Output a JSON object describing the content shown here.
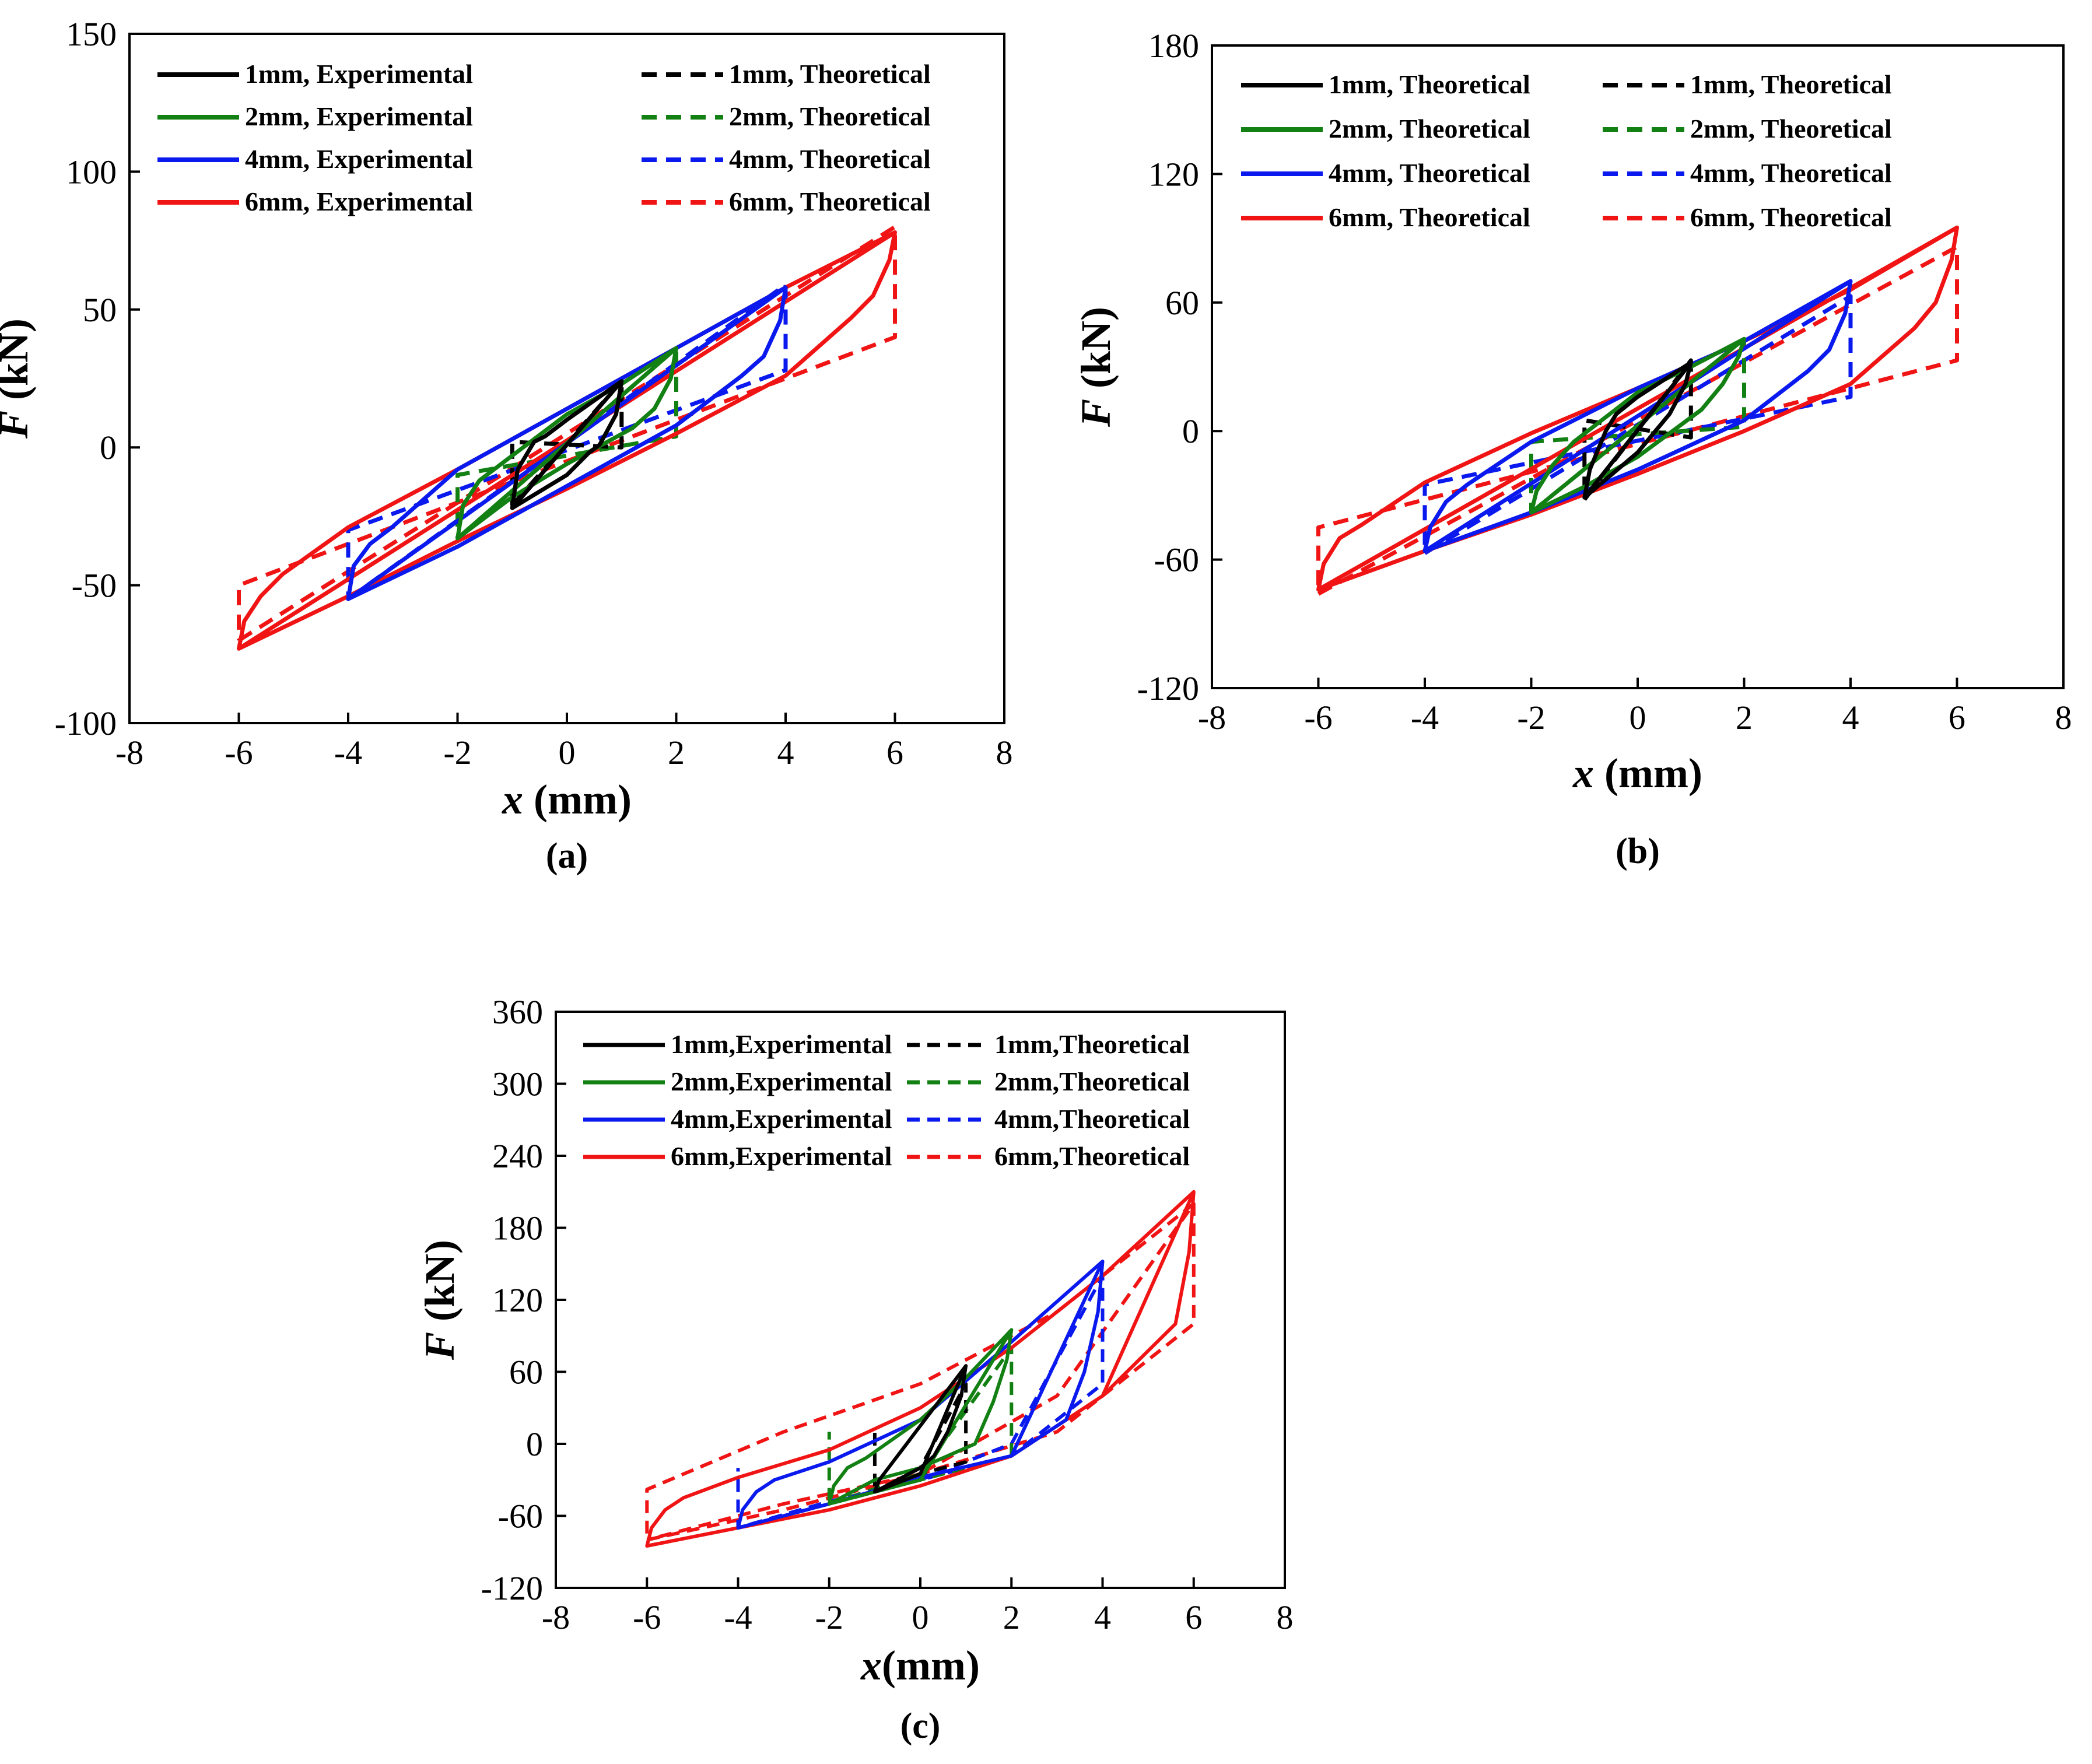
{
  "colors": {
    "1mm": "#000000",
    "2mm": "#138013",
    "4mm": "#0a19ee",
    "6mm": "#f01414"
  },
  "chart_data": [
    {
      "type": "line",
      "panel_label": "(a)",
      "xlabel_var": "x",
      "xlabel_unit": " (mm)",
      "ylabel_var": "F",
      "ylabel_unit": " (kN)",
      "xlim": [
        -8,
        8
      ],
      "ylim": [
        -100,
        150
      ],
      "xticks": [
        -8,
        -6,
        -4,
        -2,
        0,
        2,
        4,
        6,
        8
      ],
      "yticks": [
        -100,
        -50,
        0,
        50,
        100,
        150
      ],
      "legend": [
        {
          "label": "1mm, Experimental",
          "key": "1mm",
          "style": "solid"
        },
        {
          "label": "1mm, Theoretical",
          "key": "1mm",
          "style": "dashed"
        },
        {
          "label": "2mm, Experimental",
          "key": "2mm",
          "style": "solid"
        },
        {
          "label": "2mm, Theoretical",
          "key": "2mm",
          "style": "dashed"
        },
        {
          "label": "4mm, Experimental",
          "key": "4mm",
          "style": "solid"
        },
        {
          "label": "4mm, Theoretical",
          "key": "4mm",
          "style": "dashed"
        },
        {
          "label": "6mm, Experimental",
          "key": "6mm",
          "style": "solid"
        },
        {
          "label": "6mm, Theoretical",
          "key": "6mm",
          "style": "dashed"
        }
      ],
      "series": [
        {
          "name": "6mm, Theoretical",
          "key": "6mm",
          "style": "dashed",
          "x": [
            -6,
            6,
            6,
            -6,
            -6
          ],
          "y": [
            -70,
            80,
            40,
            -50,
            -70
          ]
        },
        {
          "name": "4mm, Theoretical",
          "key": "4mm",
          "style": "dashed",
          "x": [
            -4,
            4,
            4,
            -4,
            -4
          ],
          "y": [
            -55,
            59,
            28,
            -30,
            -55
          ]
        },
        {
          "name": "2mm, Theoretical",
          "key": "2mm",
          "style": "dashed",
          "x": [
            -2,
            2,
            2,
            -2,
            -2
          ],
          "y": [
            -33,
            36,
            4,
            -10,
            -33
          ]
        },
        {
          "name": "1mm, Theoretical",
          "key": "1mm",
          "style": "dashed",
          "x": [
            -1,
            1,
            1,
            -1,
            -1
          ],
          "y": [
            -21,
            24,
            0,
            2,
            -21
          ]
        },
        {
          "name": "6mm, Experimental",
          "key": "6mm",
          "style": "solid",
          "x": [
            -6,
            6,
            5.9,
            5.6,
            5.2,
            4,
            2,
            0,
            -2,
            -4,
            -6,
            -5.9,
            -5.6,
            -5.2,
            -4,
            -2,
            0,
            2,
            4,
            6
          ],
          "y": [
            -73,
            78,
            68,
            55,
            47,
            26,
            5,
            -15,
            -34,
            -54,
            -73,
            -63,
            -54,
            -46,
            -29,
            -8,
            14,
            36,
            58,
            78
          ]
        },
        {
          "name": "4mm, Experimental",
          "key": "4mm",
          "style": "solid",
          "x": [
            -4,
            4,
            3.9,
            3.6,
            3.2,
            2,
            0,
            -2,
            -4,
            -3.9,
            -3.6,
            -3.2,
            -2,
            0,
            2,
            4
          ],
          "y": [
            -55,
            58,
            46,
            33,
            26,
            8,
            -14,
            -36,
            -55,
            -43,
            -35,
            -29,
            -8,
            14,
            36,
            58
          ]
        },
        {
          "name": "2mm, Experimental",
          "key": "2mm",
          "style": "solid",
          "x": [
            -2,
            2,
            1.9,
            1.6,
            1.2,
            0,
            -1,
            -2,
            -1.9,
            -1.6,
            -1.2,
            0,
            1,
            2
          ],
          "y": [
            -33,
            36,
            25,
            14,
            7,
            -6,
            -18,
            -33,
            -21,
            -12,
            -6,
            12,
            23,
            36
          ]
        },
        {
          "name": "1mm, Experimental",
          "key": "1mm",
          "style": "solid",
          "x": [
            -1,
            1,
            0.9,
            0.6,
            0.4,
            0,
            -1,
            -0.9,
            -0.6,
            -0.4,
            0,
            1
          ],
          "y": [
            -22,
            24,
            12,
            1,
            -2,
            -10,
            -22,
            -8,
            2,
            4,
            10,
            24
          ]
        }
      ]
    },
    {
      "type": "line",
      "panel_label": "(b)",
      "xlabel_var": "x",
      "xlabel_unit": " (mm)",
      "ylabel_var": "F",
      "ylabel_unit": " (kN)",
      "xlim": [
        -8,
        8
      ],
      "ylim": [
        -120,
        180
      ],
      "xticks": [
        -8,
        -6,
        -4,
        -2,
        0,
        2,
        4,
        6,
        8
      ],
      "yticks": [
        -120,
        -60,
        0,
        60,
        120,
        180
      ],
      "legend": [
        {
          "label": "1mm, Theoretical",
          "key": "1mm",
          "style": "solid"
        },
        {
          "label": "1mm, Theoretical",
          "key": "1mm",
          "style": "dashed"
        },
        {
          "label": "2mm, Theoretical",
          "key": "2mm",
          "style": "solid"
        },
        {
          "label": "2mm, Theoretical",
          "key": "2mm",
          "style": "dashed"
        },
        {
          "label": "4mm, Theoretical",
          "key": "4mm",
          "style": "solid"
        },
        {
          "label": "4mm, Theoretical",
          "key": "4mm",
          "style": "dashed"
        },
        {
          "label": "6mm, Theoretical",
          "key": "6mm",
          "style": "solid"
        },
        {
          "label": "6mm, Theoretical",
          "key": "6mm",
          "style": "dashed"
        }
      ],
      "series": [
        {
          "name": "6mm, Theoretical (dashed)",
          "key": "6mm",
          "style": "dashed",
          "x": [
            -6,
            6,
            6,
            -6,
            -6
          ],
          "y": [
            -76,
            86,
            33,
            -45,
            -76
          ]
        },
        {
          "name": "4mm, Theoretical (dashed)",
          "key": "4mm",
          "style": "dashed",
          "x": [
            -4,
            4,
            4,
            -4,
            -4
          ],
          "y": [
            -57,
            63,
            16,
            -25,
            -57
          ]
        },
        {
          "name": "2mm, Theoretical (dashed)",
          "key": "2mm",
          "style": "dashed",
          "x": [
            -2,
            2,
            2,
            -2,
            -2
          ],
          "y": [
            -38,
            43,
            2,
            -5,
            -38
          ]
        },
        {
          "name": "1mm, Theoretical (dashed)",
          "key": "1mm",
          "style": "dashed",
          "x": [
            -1,
            1,
            1,
            -1,
            -1
          ],
          "y": [
            -32,
            33,
            -3,
            5,
            -32
          ]
        },
        {
          "name": "6mm, Theoretical",
          "key": "6mm",
          "style": "solid",
          "x": [
            -6,
            6,
            5.9,
            5.6,
            5.2,
            4,
            2,
            0,
            -2,
            -4,
            -6,
            -5.9,
            -5.6,
            -5.2,
            -4,
            -2,
            0,
            2,
            4,
            6
          ],
          "y": [
            -74,
            95,
            80,
            60,
            48,
            22,
            0,
            -20,
            -39,
            -56,
            -74,
            -62,
            -50,
            -44,
            -24,
            -1,
            20,
            42,
            66,
            95
          ]
        },
        {
          "name": "4mm, Theoretical",
          "key": "4mm",
          "style": "solid",
          "x": [
            -4,
            4,
            3.9,
            3.6,
            3.2,
            2,
            0,
            -2,
            -4,
            -3.9,
            -3.6,
            -3.2,
            -2,
            0,
            2,
            4
          ],
          "y": [
            -56,
            70,
            55,
            38,
            28,
            5,
            -18,
            -38,
            -56,
            -45,
            -33,
            -25,
            -5,
            20,
            42,
            70
          ]
        },
        {
          "name": "2mm, Theoretical",
          "key": "2mm",
          "style": "solid",
          "x": [
            -2,
            2,
            1.9,
            1.6,
            1.2,
            0,
            -1,
            -2,
            -1.9,
            -1.6,
            -1.2,
            0,
            1,
            2
          ],
          "y": [
            -38,
            43,
            35,
            22,
            10,
            -12,
            -26,
            -38,
            -28,
            -16,
            -5,
            18,
            30,
            43
          ]
        },
        {
          "name": "1mm, Theoretical",
          "key": "1mm",
          "style": "solid",
          "x": [
            -1,
            1,
            0.9,
            0.6,
            0.4,
            0,
            -1,
            -0.9,
            -0.6,
            -0.4,
            0,
            1
          ],
          "y": [
            -31,
            32,
            22,
            8,
            2,
            -10,
            -31,
            -18,
            0,
            8,
            16,
            32
          ]
        }
      ]
    },
    {
      "type": "line",
      "panel_label": "(c)",
      "xlabel_var": "x",
      "xlabel_unit": "(mm)",
      "ylabel_var": "F",
      "ylabel_unit": " (kN)",
      "xlim": [
        -8,
        8
      ],
      "ylim": [
        -120,
        360
      ],
      "xticks": [
        -8,
        -6,
        -4,
        -2,
        0,
        2,
        4,
        6,
        8
      ],
      "yticks": [
        -120,
        -60,
        0,
        60,
        120,
        180,
        240,
        300,
        360
      ],
      "legend": [
        {
          "label": "1mm,Experimental",
          "key": "1mm",
          "style": "solid"
        },
        {
          "label": "1mm,Theoretical",
          "key": "1mm",
          "style": "dashed"
        },
        {
          "label": "2mm,Experimental",
          "key": "2mm",
          "style": "solid"
        },
        {
          "label": "2mm,Theoretical",
          "key": "2mm",
          "style": "dashed"
        },
        {
          "label": "4mm,Experimental",
          "key": "4mm",
          "style": "solid"
        },
        {
          "label": "4mm,Theoretical",
          "key": "4mm",
          "style": "dashed"
        },
        {
          "label": "6mm,Experimental",
          "key": "6mm",
          "style": "solid"
        },
        {
          "label": "6mm,Theoretical",
          "key": "6mm",
          "style": "dashed"
        }
      ],
      "series": [
        {
          "name": "6mm,Theoretical",
          "key": "6mm",
          "style": "dashed",
          "x": [
            -6,
            -3,
            0,
            3,
            6,
            6,
            3,
            0,
            -3,
            -6,
            -6
          ],
          "y": [
            -80,
            -55,
            -25,
            40,
            200,
            100,
            10,
            -25,
            -50,
            -80,
            -80
          ]
        },
        {
          "name": "6mm,Theoretical (upper return)",
          "key": "6mm",
          "style": "dashed",
          "x": [
            6,
            3,
            0,
            -3,
            -6,
            -6
          ],
          "y": [
            200,
            110,
            50,
            10,
            -38,
            -80
          ]
        },
        {
          "name": "4mm,Theoretical",
          "key": "4mm",
          "style": "dashed",
          "x": [
            -4,
            -2,
            0,
            2,
            4,
            4,
            2,
            0,
            -2,
            -4,
            -4
          ],
          "y": [
            -70,
            -50,
            -30,
            0,
            140,
            50,
            -10,
            -30,
            -48,
            -70,
            -20
          ]
        },
        {
          "name": "2mm,Theoretical",
          "key": "2mm",
          "style": "dashed",
          "x": [
            -2,
            0,
            2,
            2,
            0,
            -2,
            -2
          ],
          "y": [
            -50,
            -25,
            80,
            -10,
            -30,
            -50,
            10
          ]
        },
        {
          "name": "1mm,Theoretical",
          "key": "1mm",
          "style": "dashed",
          "x": [
            -1,
            0,
            1,
            1,
            0,
            -1,
            -1
          ],
          "y": [
            -40,
            -20,
            50,
            -15,
            -25,
            -40,
            15
          ]
        },
        {
          "name": "6mm,Experimental",
          "key": "6mm",
          "style": "solid",
          "x": [
            -6,
            -4,
            -2,
            0,
            2,
            4,
            6,
            5.9,
            5.6,
            5.2,
            4,
            2,
            0,
            -2,
            -4,
            -6,
            -5.9,
            -5.6,
            -5.2,
            -4,
            -2,
            0,
            2,
            4,
            6
          ],
          "y": [
            -85,
            -70,
            -55,
            -35,
            -10,
            40,
            210,
            160,
            100,
            85,
            40,
            -10,
            -35,
            -55,
            -70,
            -85,
            -70,
            -55,
            -45,
            -28,
            -5,
            30,
            80,
            140,
            210
          ]
        },
        {
          "name": "4mm,Experimental",
          "key": "4mm",
          "style": "solid",
          "x": [
            -4,
            -2,
            0,
            2,
            4,
            3.9,
            3.6,
            3.2,
            2,
            0,
            -2,
            -4,
            -3.9,
            -3.6,
            -3.2,
            -2,
            0,
            2,
            4
          ],
          "y": [
            -70,
            -50,
            -28,
            -10,
            152,
            110,
            60,
            20,
            -10,
            -28,
            -50,
            -70,
            -55,
            -40,
            -30,
            -15,
            20,
            85,
            152
          ]
        },
        {
          "name": "2mm,Experimental",
          "key": "2mm",
          "style": "solid",
          "x": [
            -2,
            0,
            2,
            1.9,
            1.6,
            1.2,
            0,
            -1,
            -2,
            -1.9,
            -1.6,
            -1.2,
            0,
            1,
            2
          ],
          "y": [
            -50,
            -30,
            95,
            70,
            35,
            0,
            -20,
            -30,
            -50,
            -35,
            -20,
            -12,
            20,
            55,
            95
          ]
        },
        {
          "name": "1mm,Experimental",
          "key": "1mm",
          "style": "solid",
          "x": [
            -1,
            0,
            1,
            0.9,
            0.6,
            0.3,
            0,
            -1,
            -0.9,
            -0.6,
            -0.3,
            0,
            1
          ],
          "y": [
            -40,
            -25,
            65,
            40,
            10,
            -10,
            -20,
            -40,
            -30,
            -15,
            0,
            15,
            65
          ]
        }
      ]
    }
  ]
}
